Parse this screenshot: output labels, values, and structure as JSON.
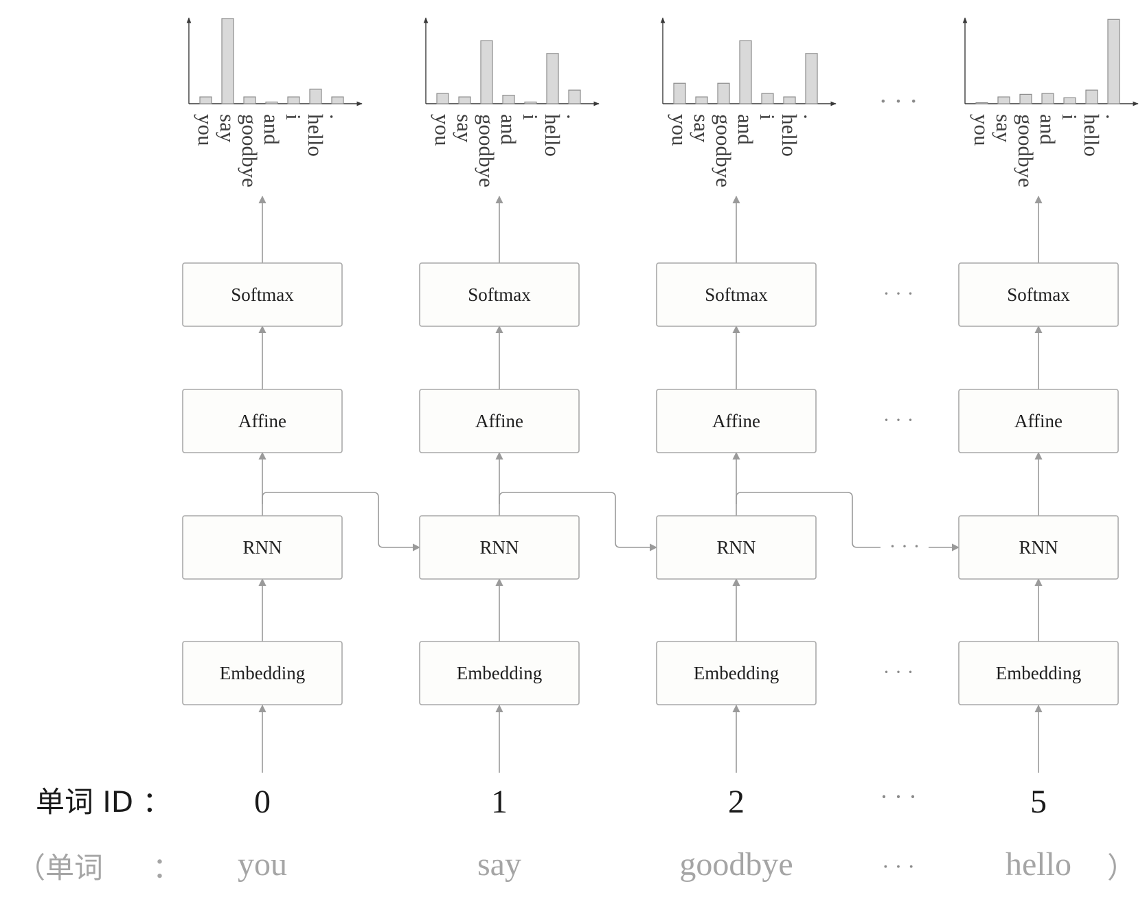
{
  "layers": [
    "Softmax",
    "Affine",
    "RNN",
    "Embedding"
  ],
  "vocabulary": [
    "you",
    "say",
    "goodbye",
    "and",
    "i",
    "hello",
    "."
  ],
  "columns": [
    {
      "word_id": "0",
      "word": "you",
      "probs": [
        0.08,
        1.0,
        0.08,
        0.02,
        0.08,
        0.17,
        0.08
      ]
    },
    {
      "word_id": "1",
      "word": "say",
      "probs": [
        0.12,
        0.08,
        0.74,
        0.1,
        0.02,
        0.59,
        0.16
      ]
    },
    {
      "word_id": "2",
      "word": "goodbye",
      "probs": [
        0.24,
        0.08,
        0.24,
        0.74,
        0.12,
        0.08,
        0.59
      ]
    },
    {
      "word_id": "5",
      "word": "hello",
      "probs": [
        0.01,
        0.08,
        0.11,
        0.12,
        0.07,
        0.16,
        0.99
      ]
    }
  ],
  "ellipsis": "· · ·",
  "row_labels": {
    "word_id": "单词 ID ：",
    "word_open": "（单词",
    "word_colon": "：",
    "word_close": "）"
  },
  "colors": {
    "box_stroke": "#a9a9a9",
    "connector": "#9a9a9a",
    "bar_fill": "#d9d9d9",
    "muted_text": "#a5a5a5"
  }
}
